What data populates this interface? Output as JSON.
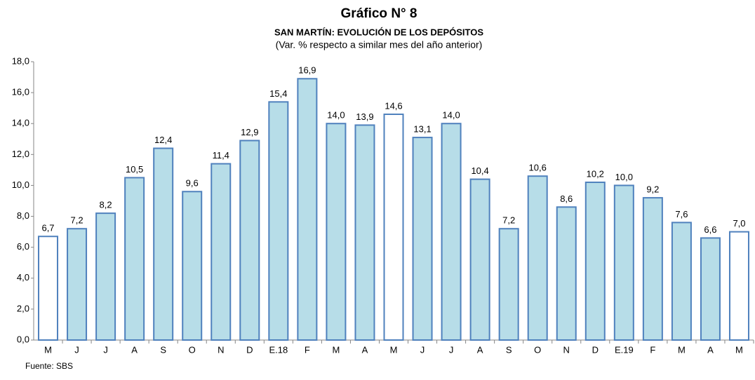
{
  "chart_data": {
    "type": "bar",
    "title": "Gráfico N° 8",
    "subtitle": "SAN MARTÍN: EVOLUCIÓN DE LOS DEPÓSITOS",
    "subtitle2": "(Var. % respecto a similar mes del año anterior)",
    "source": "Fuente: SBS",
    "categories": [
      "M",
      "J",
      "J",
      "A",
      "S",
      "O",
      "N",
      "D",
      "E.18",
      "F",
      "M",
      "A",
      "M",
      "J",
      "J",
      "A",
      "S",
      "O",
      "N",
      "D",
      "E.19",
      "F",
      "M",
      "A",
      "M"
    ],
    "values": [
      6.7,
      7.2,
      8.2,
      10.5,
      12.4,
      9.6,
      11.4,
      12.9,
      15.4,
      16.9,
      14.0,
      13.9,
      14.6,
      13.1,
      14.0,
      10.4,
      7.2,
      10.6,
      8.6,
      10.2,
      10.0,
      9.2,
      7.6,
      6.6,
      7.0
    ],
    "value_labels": [
      "6,7",
      "7,2",
      "8,2",
      "10,5",
      "12,4",
      "9,6",
      "11,4",
      "12,9",
      "15,4",
      "16,9",
      "14,0",
      "13,9",
      "14,6",
      "13,1",
      "14,0",
      "10,4",
      "7,2",
      "10,6",
      "8,6",
      "10,2",
      "10,0",
      "9,2",
      "7,6",
      "6,6",
      "7,0"
    ],
    "colors": [
      "#ffffff",
      "#b7dde8",
      "#b7dde8",
      "#b7dde8",
      "#b7dde8",
      "#b7dde8",
      "#b7dde8",
      "#b7dde8",
      "#b7dde8",
      "#b7dde8",
      "#b7dde8",
      "#b7dde8",
      "#ffffff",
      "#b7dde8",
      "#b7dde8",
      "#b7dde8",
      "#b7dde8",
      "#b7dde8",
      "#b7dde8",
      "#b7dde8",
      "#b7dde8",
      "#b7dde8",
      "#b7dde8",
      "#b7dde8",
      "#ffffff"
    ],
    "border_color": "#4f81bd",
    "ylim": [
      0,
      18
    ],
    "yticks": [
      {
        "value": 0,
        "label": "0,0"
      },
      {
        "value": 2,
        "label": "2,0"
      },
      {
        "value": 4,
        "label": "4,0"
      },
      {
        "value": 6,
        "label": "6,0"
      },
      {
        "value": 8,
        "label": "8,0"
      },
      {
        "value": 10,
        "label": "10,0"
      },
      {
        "value": 12,
        "label": "12,0"
      },
      {
        "value": 14,
        "label": "14,0"
      },
      {
        "value": 16,
        "label": "16,0"
      },
      {
        "value": 18,
        "label": "18,0"
      }
    ],
    "grid": false
  }
}
